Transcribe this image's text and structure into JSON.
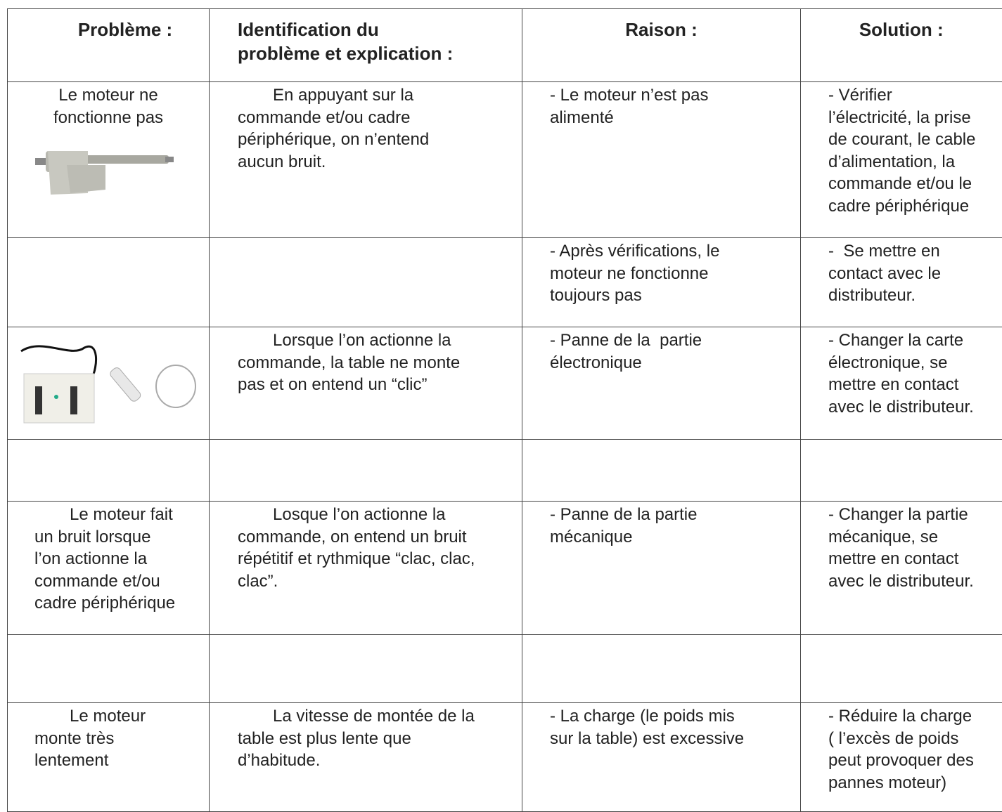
{
  "table": {
    "header": [
      [
        "Problème :"
      ],
      [
        "Identification du",
        "problème et explication :"
      ],
      [
        "Raison :"
      ],
      [
        "Solution :"
      ]
    ],
    "rows": [
      [
        [
          "Le moteur ne",
          "fonctionne pas"
        ],
        [
          "En appuyant sur la",
          "commande et/ou cadre",
          "périphérique, on n’entend",
          "aucun bruit."
        ],
        [
          "- Le moteur n’est pas",
          "alimenté"
        ],
        [
          "- Vérifier",
          "l’électricité, la prise",
          "de courant, le cable",
          "d’alimentation, la",
          "commande et/ou le",
          "cadre périphérique"
        ]
      ],
      [
        [],
        [],
        [
          "- Après vérifications, le",
          "moteur ne fonctionne",
          "toujours pas"
        ],
        [
          "-  Se mettre en",
          "contact avec le",
          "distributeur."
        ]
      ],
      [
        [],
        [
          "Lorsque l’on actionne la",
          "commande, la table ne monte",
          "pas et on entend un “clic”"
        ],
        [
          "- Panne de la  partie",
          "électronique"
        ],
        [
          "- Changer la carte",
          "électronique, se",
          "mettre en contact",
          "avec le distributeur."
        ]
      ],
      [
        [],
        [],
        [],
        []
      ],
      [
        [
          "Le moteur fait",
          "un bruit lorsque",
          "l’on actionne la",
          "commande et/ou",
          "cadre périphérique"
        ],
        [
          "Losque l’on actionne la",
          "commande, on entend un bruit",
          "répétitif et rythmique “clac, clac,",
          "clac”."
        ],
        [
          "- Panne de la partie",
          "mécanique"
        ],
        [
          "- Changer la partie",
          "mécanique, se",
          "mettre en contact",
          "avec le distributeur."
        ]
      ],
      [
        [],
        [],
        [],
        []
      ],
      [
        [
          "Le moteur",
          "monte très",
          "lentement"
        ],
        [
          "La vitesse de montée de la",
          "table est plus lente que",
          "d’habitude."
        ],
        [
          "- La charge (le poids mis",
          "sur la table) est excessive"
        ],
        [
          "- Réduire la charge",
          "( l’excès de poids",
          "peut provoquer des",
          "pannes moteur)"
        ]
      ]
    ]
  }
}
